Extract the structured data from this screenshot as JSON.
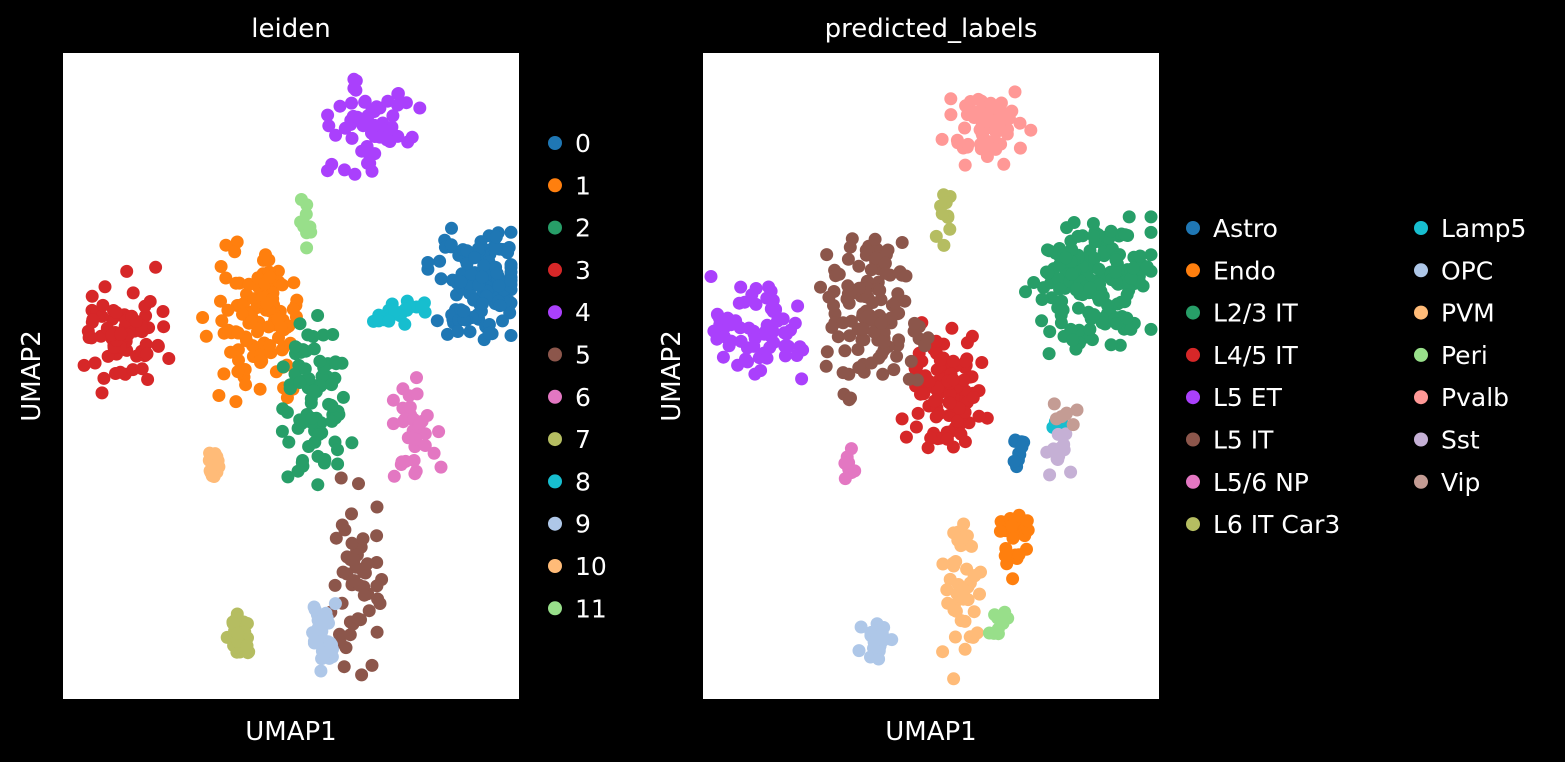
{
  "chart_data": [
    {
      "type": "scatter",
      "title": "leiden",
      "xlabel": "UMAP1",
      "ylabel": "UMAP2",
      "xlim": [
        0,
        10
      ],
      "ylim": [
        0,
        14
      ],
      "grid": false,
      "legend_placement": "right",
      "legend_columns": 1,
      "series": [
        {
          "name": "0",
          "color": "#1f77b4",
          "clusters": [
            {
              "cx": 9.1,
              "cy": 9.0,
              "rx": 0.9,
              "ry": 1.1,
              "n": 130
            }
          ]
        },
        {
          "name": "1",
          "color": "#ff7f0e",
          "clusters": [
            {
              "cx": 4.2,
              "cy": 8.2,
              "rx": 0.9,
              "ry": 1.5,
              "n": 110
            }
          ]
        },
        {
          "name": "2",
          "color": "#279e68",
          "clusters": [
            {
              "cx": 5.5,
              "cy": 6.5,
              "rx": 0.7,
              "ry": 1.5,
              "n": 85
            }
          ]
        },
        {
          "name": "3",
          "color": "#d62728",
          "clusters": [
            {
              "cx": 1.3,
              "cy": 8.0,
              "rx": 0.8,
              "ry": 1.1,
              "n": 75
            }
          ]
        },
        {
          "name": "4",
          "color": "#aa40fc",
          "clusters": [
            {
              "cx": 6.7,
              "cy": 12.4,
              "rx": 0.9,
              "ry": 0.8,
              "n": 60
            }
          ]
        },
        {
          "name": "5",
          "color": "#8c564b",
          "clusters": [
            {
              "cx": 6.4,
              "cy": 2.8,
              "rx": 0.5,
              "ry": 1.8,
              "n": 50
            }
          ]
        },
        {
          "name": "6",
          "color": "#e377c2",
          "clusters": [
            {
              "cx": 7.7,
              "cy": 5.8,
              "rx": 0.5,
              "ry": 0.9,
              "n": 35
            }
          ]
        },
        {
          "name": "7",
          "color": "#b5bd61",
          "clusters": [
            {
              "cx": 3.9,
              "cy": 1.4,
              "rx": 0.25,
              "ry": 0.4,
              "n": 30
            }
          ]
        },
        {
          "name": "8",
          "color": "#17becf",
          "clusters": [
            {
              "cx": 7.4,
              "cy": 8.4,
              "rx": 0.6,
              "ry": 0.3,
              "n": 22
            }
          ]
        },
        {
          "name": "9",
          "color": "#aec7e8",
          "clusters": [
            {
              "cx": 5.7,
              "cy": 1.3,
              "rx": 0.3,
              "ry": 0.6,
              "n": 28
            }
          ]
        },
        {
          "name": "10",
          "color": "#ffbb78",
          "clusters": [
            {
              "cx": 3.3,
              "cy": 5.0,
              "rx": 0.15,
              "ry": 0.4,
              "n": 12
            }
          ]
        },
        {
          "name": "11",
          "color": "#98df8a",
          "clusters": [
            {
              "cx": 5.3,
              "cy": 10.4,
              "rx": 0.15,
              "ry": 0.5,
              "n": 10
            }
          ]
        }
      ]
    },
    {
      "type": "scatter",
      "title": "predicted_labels",
      "xlabel": "UMAP1",
      "ylabel": "UMAP2",
      "xlim": [
        0,
        10
      ],
      "ylim": [
        0,
        14
      ],
      "grid": false,
      "legend_placement": "right",
      "legend_columns": 2,
      "series": [
        {
          "name": "Astro",
          "color": "#1f77b4",
          "clusters": [
            {
              "cx": 7.0,
              "cy": 5.3,
              "rx": 0.15,
              "ry": 0.4,
              "n": 10
            }
          ]
        },
        {
          "name": "Endo",
          "color": "#ff7f0e",
          "clusters": [
            {
              "cx": 6.8,
              "cy": 3.3,
              "rx": 0.3,
              "ry": 0.6,
              "n": 25
            }
          ]
        },
        {
          "name": "L2/3 IT",
          "color": "#279e68",
          "clusters": [
            {
              "cx": 8.6,
              "cy": 9.0,
              "rx": 1.2,
              "ry": 1.2,
              "n": 160
            }
          ]
        },
        {
          "name": "L4/5 IT",
          "color": "#d62728",
          "clusters": [
            {
              "cx": 5.3,
              "cy": 6.6,
              "rx": 0.8,
              "ry": 1.3,
              "n": 110
            }
          ]
        },
        {
          "name": "L5 ET",
          "color": "#aa40fc",
          "clusters": [
            {
              "cx": 1.2,
              "cy": 8.0,
              "rx": 0.8,
              "ry": 1.0,
              "n": 70
            }
          ]
        },
        {
          "name": "L5 IT",
          "color": "#8c564b",
          "clusters": [
            {
              "cx": 3.7,
              "cy": 8.3,
              "rx": 1.0,
              "ry": 1.5,
              "n": 120
            }
          ]
        },
        {
          "name": "L5/6 NP",
          "color": "#e377c2",
          "clusters": [
            {
              "cx": 3.2,
              "cy": 5.0,
              "rx": 0.15,
              "ry": 0.4,
              "n": 12
            }
          ]
        },
        {
          "name": "L6 IT Car3",
          "color": "#b5bd61",
          "clusters": [
            {
              "cx": 5.3,
              "cy": 10.4,
              "rx": 0.15,
              "ry": 0.5,
              "n": 10
            }
          ]
        },
        {
          "name": "Lamp5",
          "color": "#17becf",
          "clusters": [
            {
              "cx": 7.8,
              "cy": 6.0,
              "rx": 0.2,
              "ry": 0.2,
              "n": 6
            }
          ]
        },
        {
          "name": "OPC",
          "color": "#aec7e8",
          "clusters": [
            {
              "cx": 3.8,
              "cy": 1.3,
              "rx": 0.3,
              "ry": 0.4,
              "n": 28
            }
          ]
        },
        {
          "name": "PVM",
          "color": "#ffbb78",
          "clusters": [
            {
              "cx": 5.7,
              "cy": 2.2,
              "rx": 0.4,
              "ry": 1.5,
              "n": 45
            }
          ]
        },
        {
          "name": "Peri",
          "color": "#98df8a",
          "clusters": [
            {
              "cx": 6.5,
              "cy": 1.7,
              "rx": 0.2,
              "ry": 0.4,
              "n": 10
            }
          ]
        },
        {
          "name": "Pvalb",
          "color": "#ff9896",
          "clusters": [
            {
              "cx": 6.2,
              "cy": 12.5,
              "rx": 0.8,
              "ry": 0.8,
              "n": 65
            }
          ]
        },
        {
          "name": "Sst",
          "color": "#c5b0d5",
          "clusters": [
            {
              "cx": 7.8,
              "cy": 5.3,
              "rx": 0.35,
              "ry": 0.35,
              "n": 12
            }
          ]
        },
        {
          "name": "Vip",
          "color": "#c49c94",
          "clusters": [
            {
              "cx": 8.0,
              "cy": 6.2,
              "rx": 0.3,
              "ry": 0.3,
              "n": 7
            }
          ]
        }
      ]
    }
  ]
}
